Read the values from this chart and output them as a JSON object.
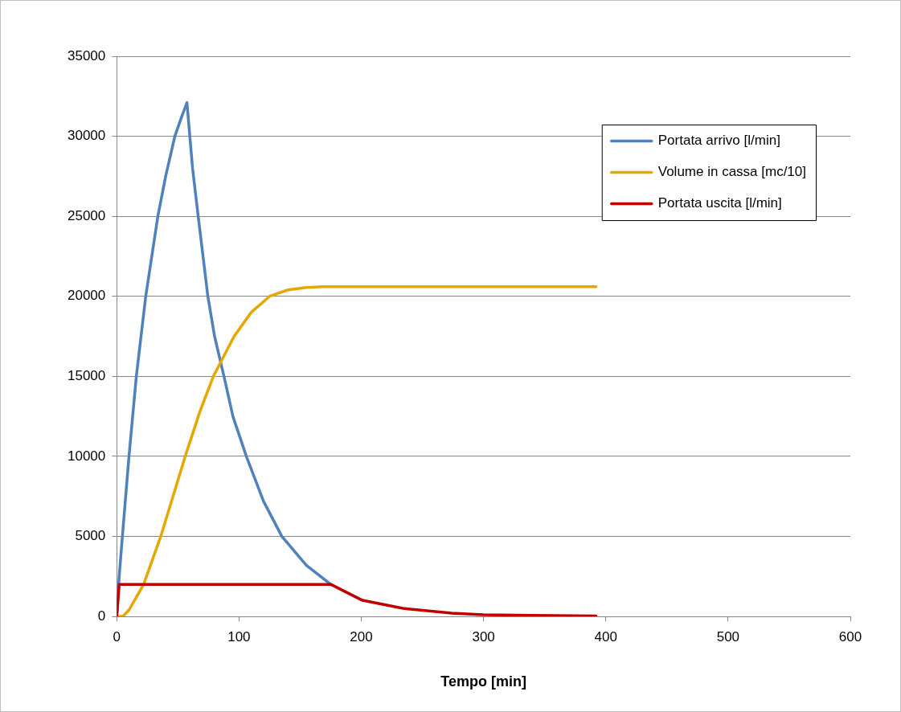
{
  "chart_data": {
    "type": "line",
    "xlabel": "Tempo [min]",
    "xlim": [
      0,
      600
    ],
    "xticks": [
      0,
      100,
      200,
      300,
      400,
      500,
      600
    ],
    "ylim": [
      0,
      35000
    ],
    "yticks": [
      0,
      5000,
      10000,
      15000,
      20000,
      25000,
      30000,
      35000
    ],
    "grid": "y",
    "legend": "top right",
    "marker": "none",
    "line_style": "solid",
    "series": [
      {
        "name": "Portata arrivo [l/min]",
        "color": "#4f81bd",
        "x": [
          0,
          2,
          4.6,
          10,
          16,
          23.7,
          33.6,
          40,
          47.5,
          53,
          57.4,
          62,
          66.6,
          74.5,
          80,
          87.7,
          95,
          106,
          120,
          135,
          155,
          175
        ],
        "values": [
          0,
          2500,
          5000,
          10000,
          15000,
          20000,
          25000,
          27500,
          30000,
          31200,
          32100,
          28000,
          25000,
          20000,
          17500,
          15000,
          12500,
          10000,
          7200,
          5000,
          3200,
          2000
        ]
      },
      {
        "name": "Volume in cassa [mc/10]",
        "color": "#e6a800",
        "x": [
          0,
          5,
          10,
          22,
          36,
          46,
          56,
          68,
          79,
          96,
          110,
          125,
          140,
          155,
          168,
          200,
          300,
          392
        ],
        "values": [
          0,
          0,
          400,
          2000,
          5000,
          7500,
          10000,
          12800,
          15000,
          17500,
          19000,
          20000,
          20400,
          20550,
          20600,
          20600,
          20600,
          20600
        ]
      },
      {
        "name": "Portata uscita [l/min]",
        "color": "#c00000",
        "x": [
          0,
          2,
          100,
          175,
          201,
          234,
          274,
          300,
          340,
          392
        ],
        "values": [
          0,
          2000,
          2000,
          2000,
          1000,
          500,
          200,
          100,
          60,
          30
        ]
      }
    ]
  }
}
